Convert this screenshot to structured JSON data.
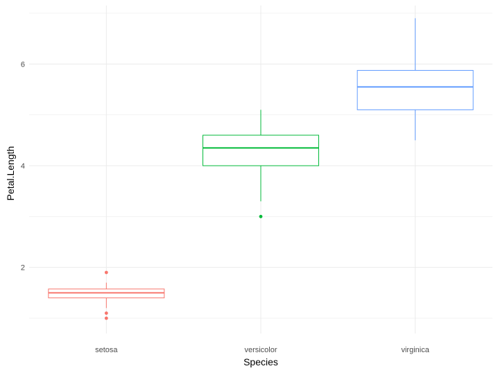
{
  "chart_data": {
    "type": "boxplot",
    "title": "",
    "xlabel": "Species",
    "ylabel": "Petal.Length",
    "categories": [
      "setosa",
      "versicolor",
      "virginica"
    ],
    "ylim": [
      0.7,
      7.15
    ],
    "y_major_ticks": [
      2,
      4,
      6
    ],
    "y_minor_ticks": [
      1,
      3,
      5,
      7
    ],
    "y_tick_labels": [
      "2",
      "4",
      "6"
    ],
    "grid": true,
    "legend": "none",
    "series": [
      {
        "category": "setosa",
        "color": "#F8766D",
        "whisker_low": 1.2,
        "q1": 1.4,
        "median": 1.5,
        "q3": 1.575,
        "whisker_high": 1.7,
        "outliers": [
          1.0,
          1.1,
          1.9
        ]
      },
      {
        "category": "versicolor",
        "color": "#00BA38",
        "whisker_low": 3.3,
        "q1": 4.0,
        "median": 4.35,
        "q3": 4.6,
        "whisker_high": 5.1,
        "outliers": [
          3.0
        ]
      },
      {
        "category": "virginica",
        "color": "#619CFF",
        "whisker_low": 4.5,
        "q1": 5.1,
        "median": 5.55,
        "q3": 5.875,
        "whisker_high": 6.9,
        "outliers": []
      }
    ]
  }
}
